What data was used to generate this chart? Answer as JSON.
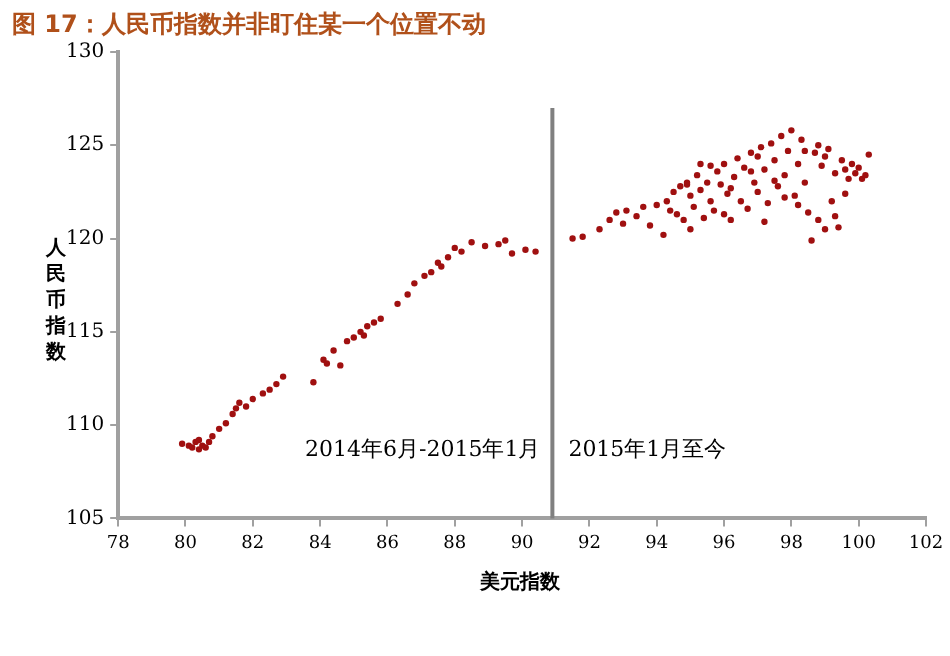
{
  "chart_data": {
    "type": "scatter",
    "title": "图 17：人民币指数并非盯住某一个位置不动",
    "xlabel": "美元指数",
    "ylabel": "人民币指数",
    "xlim": [
      78,
      102
    ],
    "xticks": [
      78,
      80,
      82,
      84,
      86,
      88,
      90,
      92,
      94,
      96,
      98,
      100,
      102
    ],
    "ylim": [
      105,
      130
    ],
    "yticks": [
      105,
      110,
      115,
      120,
      125,
      130
    ],
    "grid": false,
    "legend": false,
    "marker": "circle",
    "ref_lines": [
      {
        "axis": "x",
        "value": 90.9,
        "color": "#808080"
      }
    ],
    "annotations": [
      "2014年6月-2015年1月",
      "2015年1月至今"
    ],
    "series": [
      {
        "color": "#a01010",
        "x": [
          79.9,
          80.1,
          80.2,
          80.3,
          80.4,
          80.5,
          80.6,
          80.4,
          80.7,
          80.8,
          81.0,
          81.2,
          81.4,
          81.5,
          81.6,
          81.8,
          82.0,
          82.3,
          82.5,
          82.7,
          82.9,
          83.8,
          84.1,
          84.2,
          84.4,
          84.6,
          84.8,
          85.0,
          85.2,
          85.4,
          85.6,
          85.8,
          85.3,
          86.3,
          86.6,
          86.8,
          87.1,
          87.3,
          87.5,
          87.8,
          88.0,
          88.2,
          88.5,
          88.9,
          89.3,
          89.7,
          90.1,
          90.4,
          89.5,
          87.6,
          91.5,
          91.8,
          92.3,
          92.6,
          92.8,
          93.1,
          93.4,
          93.6,
          93.8,
          94.0,
          94.2,
          94.3,
          94.5,
          94.6,
          94.7,
          94.8,
          94.9,
          95.0,
          95.1,
          95.2,
          95.3,
          95.4,
          95.5,
          95.6,
          95.7,
          95.8,
          95.9,
          96.0,
          96.1,
          96.2,
          96.3,
          96.4,
          96.5,
          96.6,
          96.7,
          96.8,
          96.9,
          97.0,
          97.1,
          97.2,
          97.3,
          97.4,
          97.5,
          97.6,
          97.7,
          97.8,
          97.9,
          98.0,
          98.1,
          98.2,
          98.3,
          98.4,
          98.5,
          98.6,
          98.7,
          98.8,
          98.9,
          99.0,
          99.1,
          99.2,
          99.3,
          99.4,
          99.5,
          99.6,
          99.7,
          99.8,
          99.9,
          100.0,
          100.2,
          100.3,
          96.2,
          95.6,
          94.4,
          95.0,
          93.0,
          97.2,
          98.2,
          99.3,
          99.6,
          96.8,
          97.5,
          98.8,
          97.0,
          95.3,
          96.0,
          94.9,
          98.4,
          99.0,
          100.1,
          97.8
        ],
        "values": [
          109.0,
          108.9,
          108.8,
          109.1,
          108.7,
          108.9,
          108.8,
          109.2,
          109.1,
          109.4,
          109.8,
          110.1,
          110.6,
          110.9,
          111.2,
          111.0,
          111.4,
          111.7,
          111.9,
          112.2,
          112.6,
          112.3,
          113.5,
          113.3,
          114.0,
          113.2,
          114.5,
          114.7,
          115.0,
          115.3,
          115.5,
          115.7,
          114.8,
          116.5,
          117.0,
          117.6,
          118.0,
          118.2,
          118.7,
          119.0,
          119.5,
          119.3,
          119.8,
          119.6,
          119.7,
          119.2,
          119.4,
          119.3,
          119.9,
          118.5,
          120.0,
          120.1,
          120.5,
          121.0,
          121.4,
          121.5,
          121.2,
          121.7,
          120.7,
          121.8,
          120.2,
          122.0,
          122.5,
          121.3,
          122.8,
          121.0,
          123.0,
          122.3,
          121.7,
          123.4,
          122.6,
          121.1,
          123.0,
          122.0,
          121.5,
          123.6,
          122.9,
          124.0,
          122.4,
          121.0,
          123.3,
          124.3,
          122.0,
          123.8,
          121.6,
          124.6,
          123.0,
          122.5,
          124.9,
          123.7,
          121.9,
          125.1,
          124.2,
          122.8,
          125.5,
          123.4,
          124.7,
          125.8,
          122.3,
          124.0,
          125.3,
          123.0,
          121.4,
          119.9,
          124.6,
          121.0,
          123.9,
          120.5,
          124.8,
          122.0,
          123.5,
          120.6,
          124.2,
          123.7,
          123.2,
          124.0,
          123.5,
          123.8,
          123.4,
          124.5,
          122.7,
          123.9,
          121.5,
          120.5,
          120.8,
          120.9,
          121.8,
          121.2,
          122.4,
          123.6,
          123.1,
          125.0,
          124.4,
          124.0,
          121.3,
          122.9,
          124.7,
          124.4,
          123.2,
          122.2
        ]
      }
    ]
  }
}
